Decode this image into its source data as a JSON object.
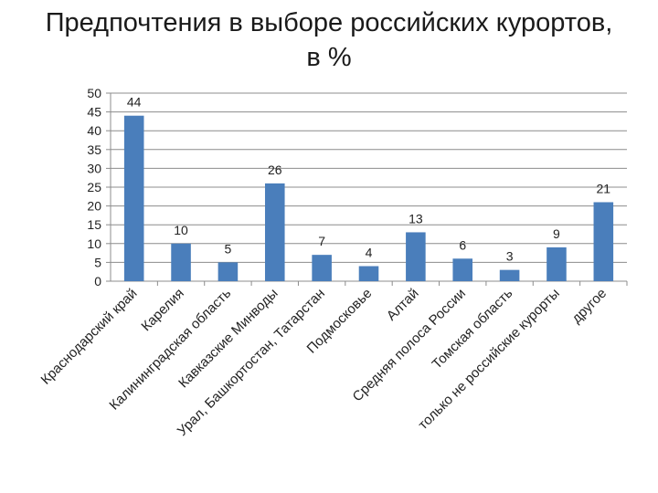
{
  "title": {
    "line1": "Предпочтения в выборе российских курортов,",
    "line2": "в %"
  },
  "chart_data": {
    "type": "bar",
    "title": "Предпочтения в выборе российских курортов, в %",
    "categories": [
      "Краснодарский край",
      "Карелия",
      "Калининградская область",
      "Кавказские Минводы",
      "Урал, Башкортостан, Татарстан",
      "Подмосковье",
      "Алтай",
      "Средняя полоса России",
      "Томская область",
      "только не российские курорты",
      "другое"
    ],
    "values": [
      44,
      10,
      5,
      26,
      7,
      4,
      13,
      6,
      3,
      9,
      21
    ],
    "ylim": [
      0,
      50
    ],
    "yticks": [
      0,
      5,
      10,
      15,
      20,
      25,
      30,
      35,
      40,
      45,
      50
    ],
    "grid": true,
    "bar_color": "#4a7ebb"
  }
}
